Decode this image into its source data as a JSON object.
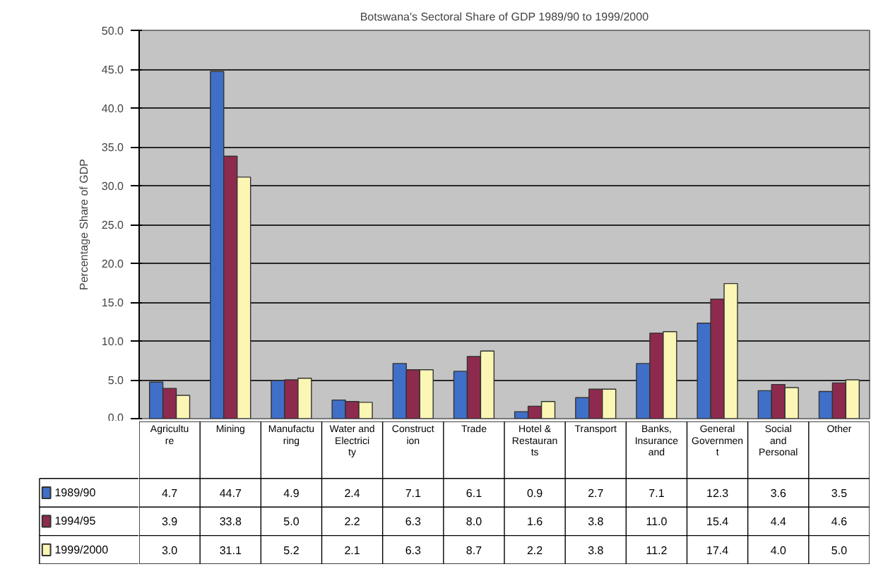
{
  "chart_data": {
    "type": "bar",
    "title": "Botswana's Sectoral Share of GDP 1989/90 to 1999/2000",
    "ylabel": "Percentage Share of GDP",
    "categories": [
      "Agriculture",
      "Mining",
      "Manufacturing",
      "Water and Electricity",
      "Construction",
      "Trade",
      "Hotel & Restaurants",
      "Transport",
      "Banks, Insurance and",
      "General Government",
      "Social and Personal",
      "Other"
    ],
    "series": [
      {
        "name": "1989/90",
        "color": "#3f6fc8",
        "values": [
          4.7,
          44.7,
          4.9,
          2.4,
          7.1,
          6.1,
          0.9,
          2.7,
          7.1,
          12.3,
          3.6,
          3.5
        ],
        "value_labels": [
          "4.7",
          "44.7",
          "4.9",
          "2.4",
          "7.1",
          "6.1",
          "0.9",
          "2.7",
          "7.1",
          "12.3",
          "3.6",
          "3.5"
        ]
      },
      {
        "name": "1994/95",
        "color": "#8e2a4e",
        "values": [
          3.9,
          33.8,
          5.0,
          2.2,
          6.3,
          8.0,
          1.6,
          3.8,
          11.0,
          15.4,
          4.4,
          4.6
        ],
        "value_labels": [
          "3.9",
          "33.8",
          "5.0",
          "2.2",
          "6.3",
          "8.0",
          "1.6",
          "3.8",
          "11.0",
          "15.4",
          "4.4",
          "4.6"
        ]
      },
      {
        "name": "1999/2000",
        "color": "#fbf6b4",
        "values": [
          3.0,
          31.1,
          5.2,
          2.1,
          6.3,
          8.7,
          2.2,
          3.8,
          11.2,
          17.4,
          4.0,
          5.0
        ],
        "value_labels": [
          "3.0",
          "31.1",
          "5.2",
          "2.1",
          "6.3",
          "8.7",
          "2.2",
          "3.8",
          "11.2",
          "17.4",
          "4.0",
          "5.0"
        ]
      }
    ],
    "ylim": [
      0,
      50
    ],
    "yticks": [
      {
        "value": 0,
        "label": "0.0"
      },
      {
        "value": 5,
        "label": "5.0"
      },
      {
        "value": 10,
        "label": "10.0"
      },
      {
        "value": 15,
        "label": "15.0"
      },
      {
        "value": 20,
        "label": "20.0"
      },
      {
        "value": 25,
        "label": "25.0"
      },
      {
        "value": 30,
        "label": "30.0"
      },
      {
        "value": 35,
        "label": "35.0"
      },
      {
        "value": 40,
        "label": "40.0"
      },
      {
        "value": 45,
        "label": "45.0"
      },
      {
        "value": 50,
        "label": "50.0"
      }
    ],
    "grid": "y",
    "legend": "bottom left"
  }
}
